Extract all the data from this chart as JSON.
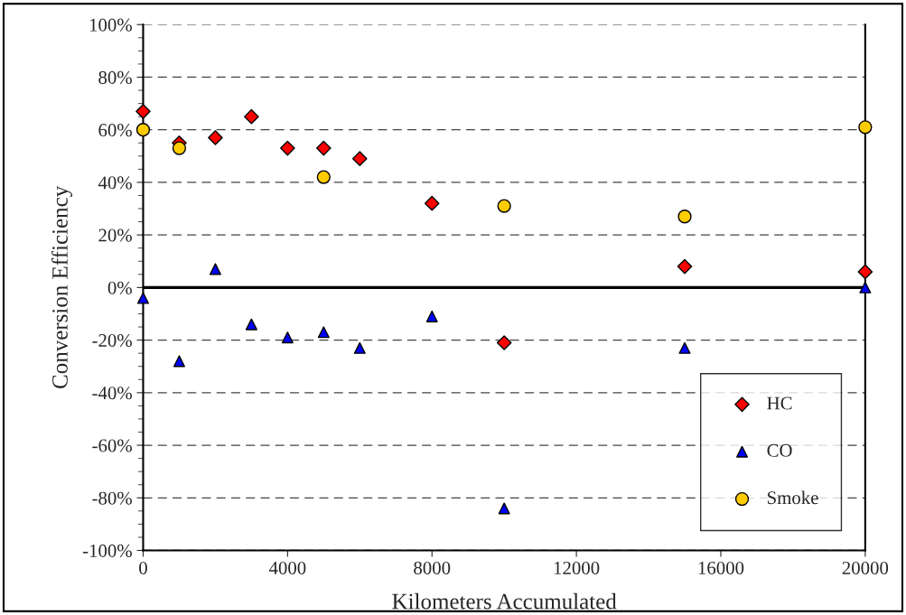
{
  "chart_data": {
    "type": "scatter",
    "xlabel": "Kilometers Accumulated",
    "ylabel": "Conversion Efficiency",
    "xlim": [
      0,
      20000
    ],
    "xticks": [
      0,
      4000,
      8000,
      12000,
      16000,
      20000
    ],
    "ylim": [
      -100,
      100
    ],
    "yticks": [
      {
        "value": -100,
        "label": "-100%"
      },
      {
        "value": -80,
        "label": "-80%"
      },
      {
        "value": -60,
        "label": "-60%"
      },
      {
        "value": -40,
        "label": "-40%"
      },
      {
        "value": -20,
        "label": "-20%"
      },
      {
        "value": 0,
        "label": "0%"
      },
      {
        "value": 20,
        "label": "20%"
      },
      {
        "value": 40,
        "label": "40%"
      },
      {
        "value": 60,
        "label": "60%"
      },
      {
        "value": 80,
        "label": "80%"
      },
      {
        "value": 100,
        "label": "100%"
      }
    ],
    "grid": "y",
    "legend": "bottom right",
    "ref_lines": [
      {
        "axis": "y",
        "value": 0,
        "color": "#000000",
        "line_style": "solid"
      }
    ],
    "series": [
      {
        "name": "HC",
        "color": "#ff0000",
        "marker": "diamond",
        "x": [
          0,
          1000,
          2000,
          3000,
          4000,
          5000,
          6000,
          8000,
          10000,
          15000,
          20000
        ],
        "values": [
          67,
          55,
          57,
          65,
          53,
          53,
          49,
          32,
          -21,
          8,
          6
        ]
      },
      {
        "name": "CO",
        "color": "#0000ff",
        "marker": "triangle",
        "x": [
          0,
          1000,
          2000,
          3000,
          4000,
          5000,
          6000,
          8000,
          10000,
          15000,
          20000
        ],
        "values": [
          -4,
          -28,
          7,
          -14,
          -19,
          -17,
          -23,
          -11,
          -84,
          -23,
          0
        ]
      },
      {
        "name": "Smoke",
        "color": "#ffcc00",
        "marker": "circle",
        "x": [
          0,
          1000,
          5000,
          10000,
          15000,
          20000
        ],
        "values": [
          60,
          53,
          42,
          31,
          27,
          61
        ]
      }
    ]
  }
}
